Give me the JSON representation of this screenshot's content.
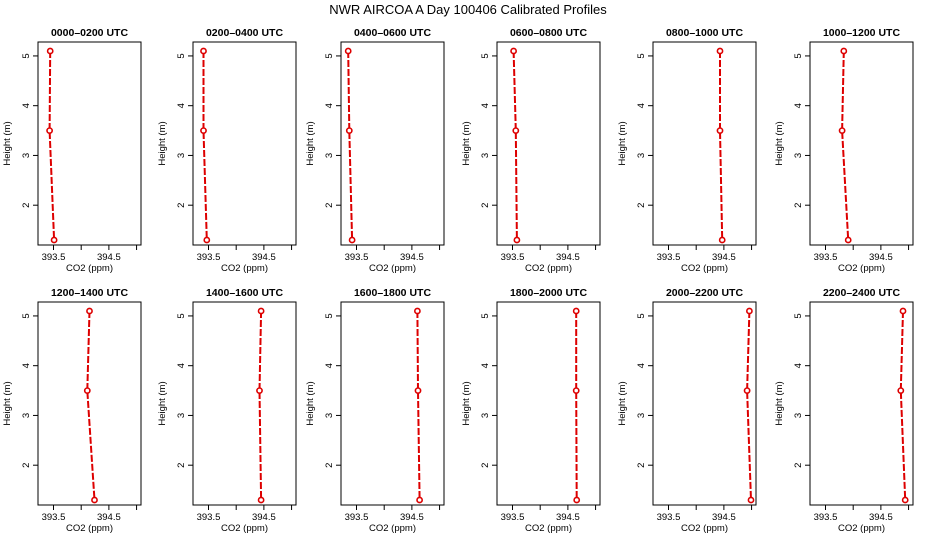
{
  "title": "NWR AIRCOA A  Day 100406  Calibrated Profiles",
  "axes": {
    "xlabel": "CO2 (ppm)",
    "ylabel": "Height (m)",
    "x_ticks": [
      "393.5",
      "394.5"
    ],
    "x_tick_values": [
      393.5,
      394.5
    ],
    "y_ticks": [
      "2",
      "3",
      "4",
      "5"
    ],
    "y_tick_values": [
      2,
      3,
      4,
      5
    ],
    "xlim": [
      393.22,
      395.08
    ],
    "ylim": [
      1.2,
      5.28
    ]
  },
  "series_color": "#dd0000",
  "chart_data": [
    {
      "type": "line",
      "title": "0000–0200 UTC",
      "x": [
        393.44,
        393.43,
        393.51
      ],
      "y": [
        5.1,
        3.5,
        1.3
      ]
    },
    {
      "type": "line",
      "title": "0200–0400 UTC",
      "x": [
        393.41,
        393.41,
        393.47
      ],
      "y": [
        5.1,
        3.5,
        1.3
      ]
    },
    {
      "type": "line",
      "title": "0400–0600 UTC",
      "x": [
        393.35,
        393.37,
        393.42
      ],
      "y": [
        5.1,
        3.5,
        1.3
      ]
    },
    {
      "type": "line",
      "title": "0600–0800 UTC",
      "x": [
        393.52,
        393.56,
        393.58
      ],
      "y": [
        5.1,
        3.5,
        1.3
      ]
    },
    {
      "type": "line",
      "title": "0800–1000 UTC",
      "x": [
        394.43,
        394.43,
        394.47
      ],
      "y": [
        5.1,
        3.5,
        1.3
      ]
    },
    {
      "type": "line",
      "title": "1000–1200 UTC",
      "x": [
        393.83,
        393.8,
        393.91
      ],
      "y": [
        5.1,
        3.5,
        1.3
      ]
    },
    {
      "type": "line",
      "title": "1200–1400 UTC",
      "x": [
        394.15,
        394.11,
        394.24
      ],
      "y": [
        5.1,
        3.5,
        1.3
      ]
    },
    {
      "type": "line",
      "title": "1400–1600 UTC",
      "x": [
        394.45,
        394.42,
        394.45
      ],
      "y": [
        5.1,
        3.5,
        1.3
      ]
    },
    {
      "type": "line",
      "title": "1600–1800 UTC",
      "x": [
        394.6,
        394.61,
        394.64
      ],
      "y": [
        5.1,
        3.5,
        1.3
      ]
    },
    {
      "type": "line",
      "title": "1800–2000 UTC",
      "x": [
        394.65,
        394.65,
        394.66
      ],
      "y": [
        5.1,
        3.5,
        1.3
      ]
    },
    {
      "type": "line",
      "title": "2000–2200 UTC",
      "x": [
        394.96,
        394.92,
        394.99
      ],
      "y": [
        5.1,
        3.5,
        1.3
      ]
    },
    {
      "type": "line",
      "title": "2200–2400 UTC",
      "x": [
        394.9,
        394.86,
        394.94
      ],
      "y": [
        5.1,
        3.5,
        1.3
      ]
    }
  ]
}
